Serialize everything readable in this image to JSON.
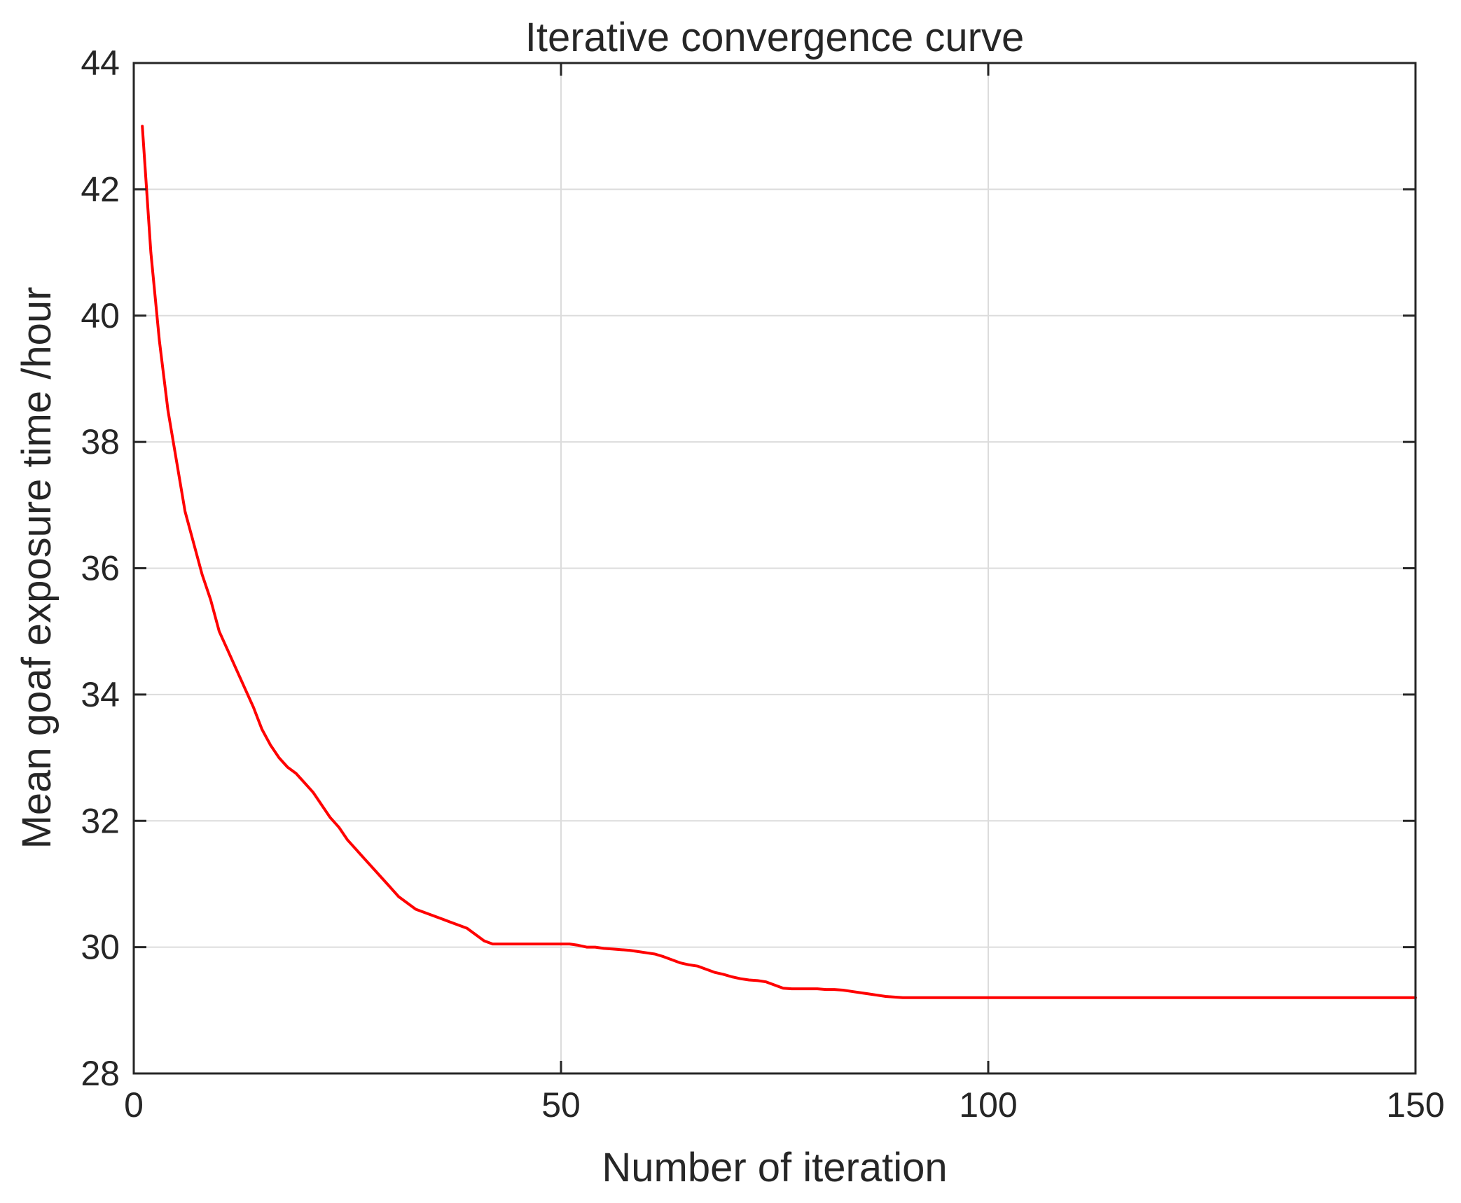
{
  "chart_data": {
    "type": "line",
    "title": "Iterative convergence curve",
    "xlabel": "Number of iteration",
    "ylabel": "Mean goaf exposure time /hour",
    "xlim": [
      0,
      150
    ],
    "ylim": [
      28,
      44
    ],
    "xticks": [
      0,
      50,
      100,
      150
    ],
    "yticks": [
      28,
      30,
      32,
      34,
      36,
      38,
      40,
      42,
      44
    ],
    "grid": true,
    "box": true,
    "series": [
      {
        "color": "#ff0000",
        "x": [
          1,
          2,
          3,
          4,
          5,
          6,
          7,
          8,
          9,
          10,
          11,
          12,
          13,
          14,
          15,
          16,
          17,
          18,
          19,
          20,
          21,
          22,
          23,
          24,
          25,
          26,
          27,
          28,
          29,
          30,
          31,
          32,
          33,
          34,
          35,
          36,
          37,
          38,
          39,
          40,
          41,
          42,
          43,
          44,
          45,
          46,
          47,
          48,
          49,
          50,
          51,
          52,
          53,
          54,
          55,
          56,
          57,
          58,
          59,
          60,
          61,
          62,
          63,
          64,
          65,
          66,
          67,
          68,
          69,
          70,
          71,
          72,
          73,
          74,
          75,
          76,
          77,
          78,
          79,
          80,
          81,
          82,
          83,
          84,
          85,
          86,
          87,
          88,
          89,
          90,
          91,
          95,
          100,
          110,
          120,
          130,
          140,
          150
        ],
        "y": [
          43.0,
          41.0,
          39.6,
          38.5,
          37.7,
          36.9,
          36.4,
          35.9,
          35.5,
          35.0,
          34.7,
          34.4,
          34.1,
          33.8,
          33.45,
          33.2,
          33.0,
          32.85,
          32.75,
          32.6,
          32.45,
          32.25,
          32.05,
          31.9,
          31.7,
          31.55,
          31.4,
          31.25,
          31.1,
          30.95,
          30.8,
          30.7,
          30.6,
          30.55,
          30.5,
          30.45,
          30.4,
          30.35,
          30.3,
          30.2,
          30.1,
          30.05,
          30.05,
          30.05,
          30.05,
          30.05,
          30.05,
          30.05,
          30.05,
          30.05,
          30.05,
          30.03,
          30.0,
          30.0,
          29.98,
          29.97,
          29.96,
          29.95,
          29.93,
          29.91,
          29.89,
          29.85,
          29.8,
          29.75,
          29.72,
          29.7,
          29.65,
          29.6,
          29.57,
          29.53,
          29.5,
          29.48,
          29.47,
          29.45,
          29.4,
          29.35,
          29.34,
          29.34,
          29.34,
          29.34,
          29.33,
          29.33,
          29.32,
          29.3,
          29.28,
          29.26,
          29.24,
          29.22,
          29.21,
          29.2,
          29.2,
          29.2,
          29.2,
          29.2,
          29.2,
          29.2,
          29.2,
          29.2
        ]
      }
    ]
  }
}
